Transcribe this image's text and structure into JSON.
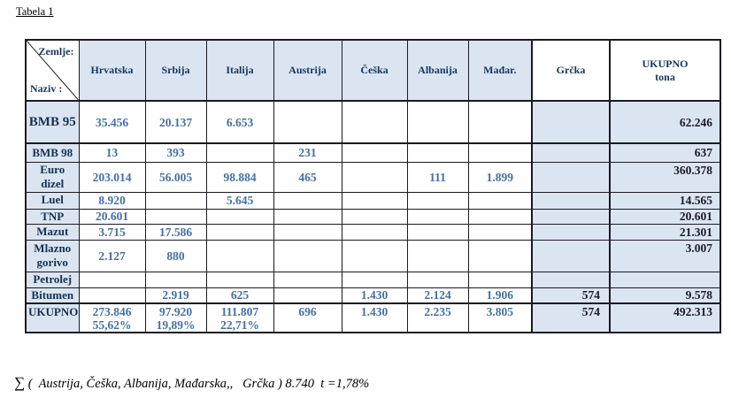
{
  "page": {
    "caption": "Tabela 1",
    "footer_sigma": "∑",
    "footer_text": " (  Austrija, Češka, Albanija, Mađarska,,   Grčka ) 8.740  t =1,78%"
  },
  "colors": {
    "cell_shade": "#dbe5f1",
    "data_text_blue": "#4470a2",
    "header_text_navy": "#17365d",
    "total_text_dark": "#1b1b26",
    "border": "#1a1a22"
  },
  "table": {
    "corner": {
      "top_right": "Zemlje:",
      "bottom_left": "Naziv :"
    },
    "columns": [
      {
        "key": "hrvatska",
        "label": "Hrvatska"
      },
      {
        "key": "srbija",
        "label": "Srbija"
      },
      {
        "key": "italija",
        "label": "Italija"
      },
      {
        "key": "austrija",
        "label": "Austrija"
      },
      {
        "key": "ceska",
        "label": "Češka"
      },
      {
        "key": "albanija",
        "label": "Albanija"
      },
      {
        "key": "madar",
        "label": "Mađar."
      },
      {
        "key": "grcka",
        "label": "Grčka"
      }
    ],
    "total_column": {
      "line1": "UKUPNO",
      "line2": "tona"
    },
    "rows": [
      {
        "key": "bmb-95",
        "label": "BMB 95",
        "values": [
          "35.456",
          "20.137",
          "6.653",
          "",
          "",
          "",
          "",
          ""
        ],
        "total": "62.246"
      },
      {
        "key": "bmb-98",
        "label": "BMB 98",
        "values": [
          "13",
          "393",
          "",
          "231",
          "",
          "",
          "",
          ""
        ],
        "total": "637"
      },
      {
        "key": "euro-dizel",
        "label": "Euro dizel",
        "values": [
          "203.014",
          "56.005",
          "98.884",
          "465",
          "",
          "111",
          "1.899",
          ""
        ],
        "total": "360.378"
      },
      {
        "key": "luel",
        "label": "Luel",
        "values": [
          "8.920",
          "",
          "5.645",
          "",
          "",
          "",
          "",
          ""
        ],
        "total": "14.565"
      },
      {
        "key": "tnp",
        "label": "TNP",
        "values": [
          "20.601",
          "",
          "",
          "",
          "",
          "",
          "",
          ""
        ],
        "total": "20.601"
      },
      {
        "key": "mazut",
        "label": "Mazut",
        "values": [
          "3.715",
          "17.586",
          "",
          "",
          "",
          "",
          "",
          ""
        ],
        "total": "21.301"
      },
      {
        "key": "mlazno-gorivo",
        "label": "Mlazno gorivo",
        "values": [
          "2.127",
          "880",
          "",
          "",
          "",
          "",
          "",
          ""
        ],
        "total": "3.007"
      },
      {
        "key": "petrolej",
        "label": "Petrolej",
        "values": [
          "",
          "",
          "",
          "",
          "",
          "",
          "",
          ""
        ],
        "total": ""
      },
      {
        "key": "bitumen",
        "label": "Bitumen",
        "values": [
          "",
          "2.919",
          "625",
          "",
          "1.430",
          "2.124",
          "1.906",
          "574"
        ],
        "total": "9.578"
      },
      {
        "key": "ukupno",
        "label": "UKUPNO",
        "values": [
          "273.846",
          "97.920",
          "111.807",
          "696",
          "1.430",
          "2.235",
          "3.805",
          "574"
        ],
        "percents": [
          "55,62%",
          "19,89%",
          "22,71%",
          "",
          "",
          "",
          "",
          ""
        ],
        "total": "492.313"
      }
    ]
  }
}
